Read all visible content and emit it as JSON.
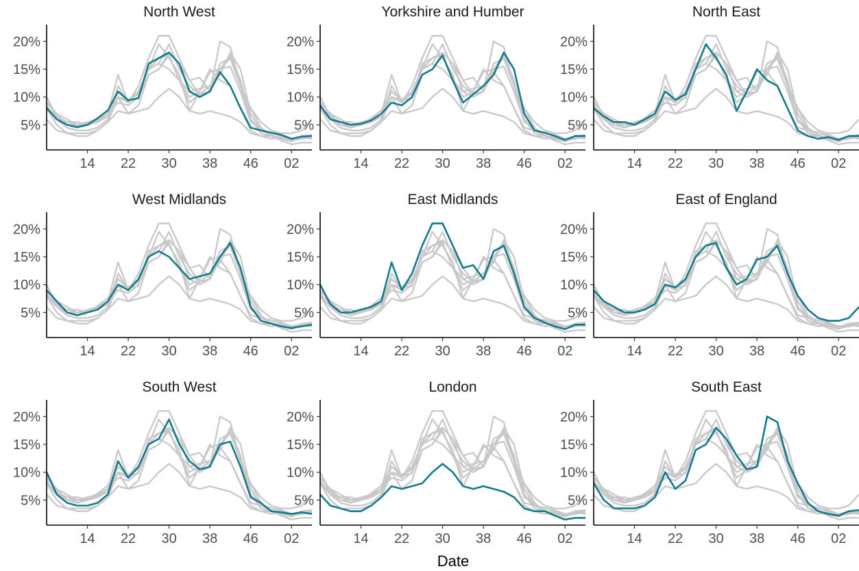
{
  "chart_data": {
    "type": "line",
    "layout": "small multiples (3x3 facets), highlighted region in each panel with all other regions drawn in grey",
    "xlabel": "Date",
    "ylabel": "",
    "x_ticks": [
      "14",
      "22",
      "30",
      "38",
      "46",
      "02"
    ],
    "x_tick_values": [
      14,
      22,
      30,
      38,
      46,
      54
    ],
    "x_range": [
      6,
      58
    ],
    "y_ticks": [
      "5%",
      "10%",
      "15%",
      "20%"
    ],
    "y_tick_values": [
      5,
      10,
      15,
      20
    ],
    "y_range": [
      0.5,
      23
    ],
    "grid": false,
    "legend": "none",
    "colors": {
      "highlight": "#0f7b8c",
      "background": "#c8c8c8"
    },
    "x": [
      6,
      8,
      10,
      12,
      14,
      16,
      18,
      20,
      22,
      24,
      26,
      28,
      30,
      32,
      34,
      36,
      38,
      40,
      42,
      44,
      46,
      48,
      50,
      52,
      54,
      56,
      58
    ],
    "series": [
      {
        "name": "North West",
        "values": [
          8.0,
          6.0,
          5.0,
          4.6,
          5.0,
          6.2,
          7.6,
          11.0,
          9.4,
          9.8,
          16.0,
          17.0,
          18.0,
          16.0,
          11.0,
          10.0,
          11.0,
          14.5,
          12.0,
          8.0,
          4.5,
          4.0,
          3.6,
          3.2,
          2.5,
          2.9,
          3.0
        ]
      },
      {
        "name": "Yorkshire and Humber",
        "values": [
          8.5,
          6.0,
          5.5,
          5.0,
          5.2,
          5.8,
          7.0,
          9.0,
          8.5,
          10.0,
          14.0,
          15.0,
          17.5,
          13.0,
          9.0,
          10.5,
          12.0,
          14.0,
          18.0,
          15.0,
          7.0,
          4.0,
          3.6,
          3.0,
          2.3,
          3.0,
          3.0
        ]
      },
      {
        "name": "North East",
        "values": [
          8.0,
          6.5,
          5.5,
          5.5,
          5.0,
          6.0,
          7.0,
          11.0,
          9.5,
          10.5,
          15.0,
          19.5,
          17.0,
          14.0,
          7.5,
          11.0,
          15.0,
          13.0,
          12.0,
          8.0,
          4.0,
          3.0,
          2.5,
          2.8,
          2.3,
          3.0,
          3.0
        ]
      },
      {
        "name": "West Midlands",
        "values": [
          9.0,
          7.0,
          5.0,
          4.5,
          5.0,
          5.5,
          7.0,
          10.0,
          9.0,
          11.0,
          15.0,
          16.0,
          15.0,
          13.0,
          11.0,
          11.5,
          12.0,
          15.0,
          17.5,
          13.0,
          6.0,
          3.5,
          3.0,
          2.5,
          2.2,
          2.5,
          2.8
        ]
      },
      {
        "name": "East Midlands",
        "values": [
          10.0,
          6.5,
          5.0,
          5.0,
          5.5,
          6.0,
          7.0,
          14.0,
          9.0,
          12.0,
          17.0,
          21.0,
          21.0,
          17.0,
          13.0,
          13.5,
          11.0,
          16.0,
          17.0,
          12.0,
          6.0,
          4.0,
          3.2,
          2.5,
          2.0,
          2.8,
          2.8
        ]
      },
      {
        "name": "East of England",
        "values": [
          9.0,
          7.0,
          6.0,
          5.0,
          5.0,
          5.5,
          6.5,
          10.0,
          9.5,
          11.0,
          15.0,
          17.0,
          17.5,
          13.0,
          10.0,
          11.0,
          14.5,
          15.0,
          17.0,
          12.0,
          8.0,
          5.5,
          4.0,
          3.5,
          3.5,
          4.0,
          6.0
        ]
      },
      {
        "name": "South West",
        "values": [
          10.0,
          6.0,
          4.5,
          4.0,
          4.0,
          4.5,
          6.0,
          12.0,
          9.0,
          11.0,
          15.0,
          16.0,
          19.5,
          15.0,
          12.0,
          10.5,
          11.0,
          15.0,
          15.5,
          11.0,
          5.5,
          4.5,
          3.0,
          2.8,
          2.5,
          2.8,
          2.5
        ]
      },
      {
        "name": "London",
        "values": [
          6.0,
          4.0,
          3.5,
          3.0,
          3.0,
          4.0,
          5.5,
          7.5,
          7.0,
          7.5,
          8.0,
          10.0,
          11.5,
          10.0,
          7.5,
          7.0,
          7.5,
          7.0,
          6.5,
          5.5,
          3.5,
          3.0,
          3.0,
          2.2,
          1.5,
          1.8,
          1.8
        ]
      },
      {
        "name": "South East",
        "values": [
          8.0,
          5.0,
          3.5,
          3.5,
          3.5,
          4.0,
          5.5,
          10.0,
          7.0,
          8.5,
          14.0,
          15.0,
          18.0,
          16.0,
          13.0,
          10.5,
          11.0,
          20.0,
          19.0,
          12.0,
          8.0,
          4.5,
          3.0,
          2.5,
          2.2,
          3.0,
          3.2
        ]
      }
    ]
  }
}
